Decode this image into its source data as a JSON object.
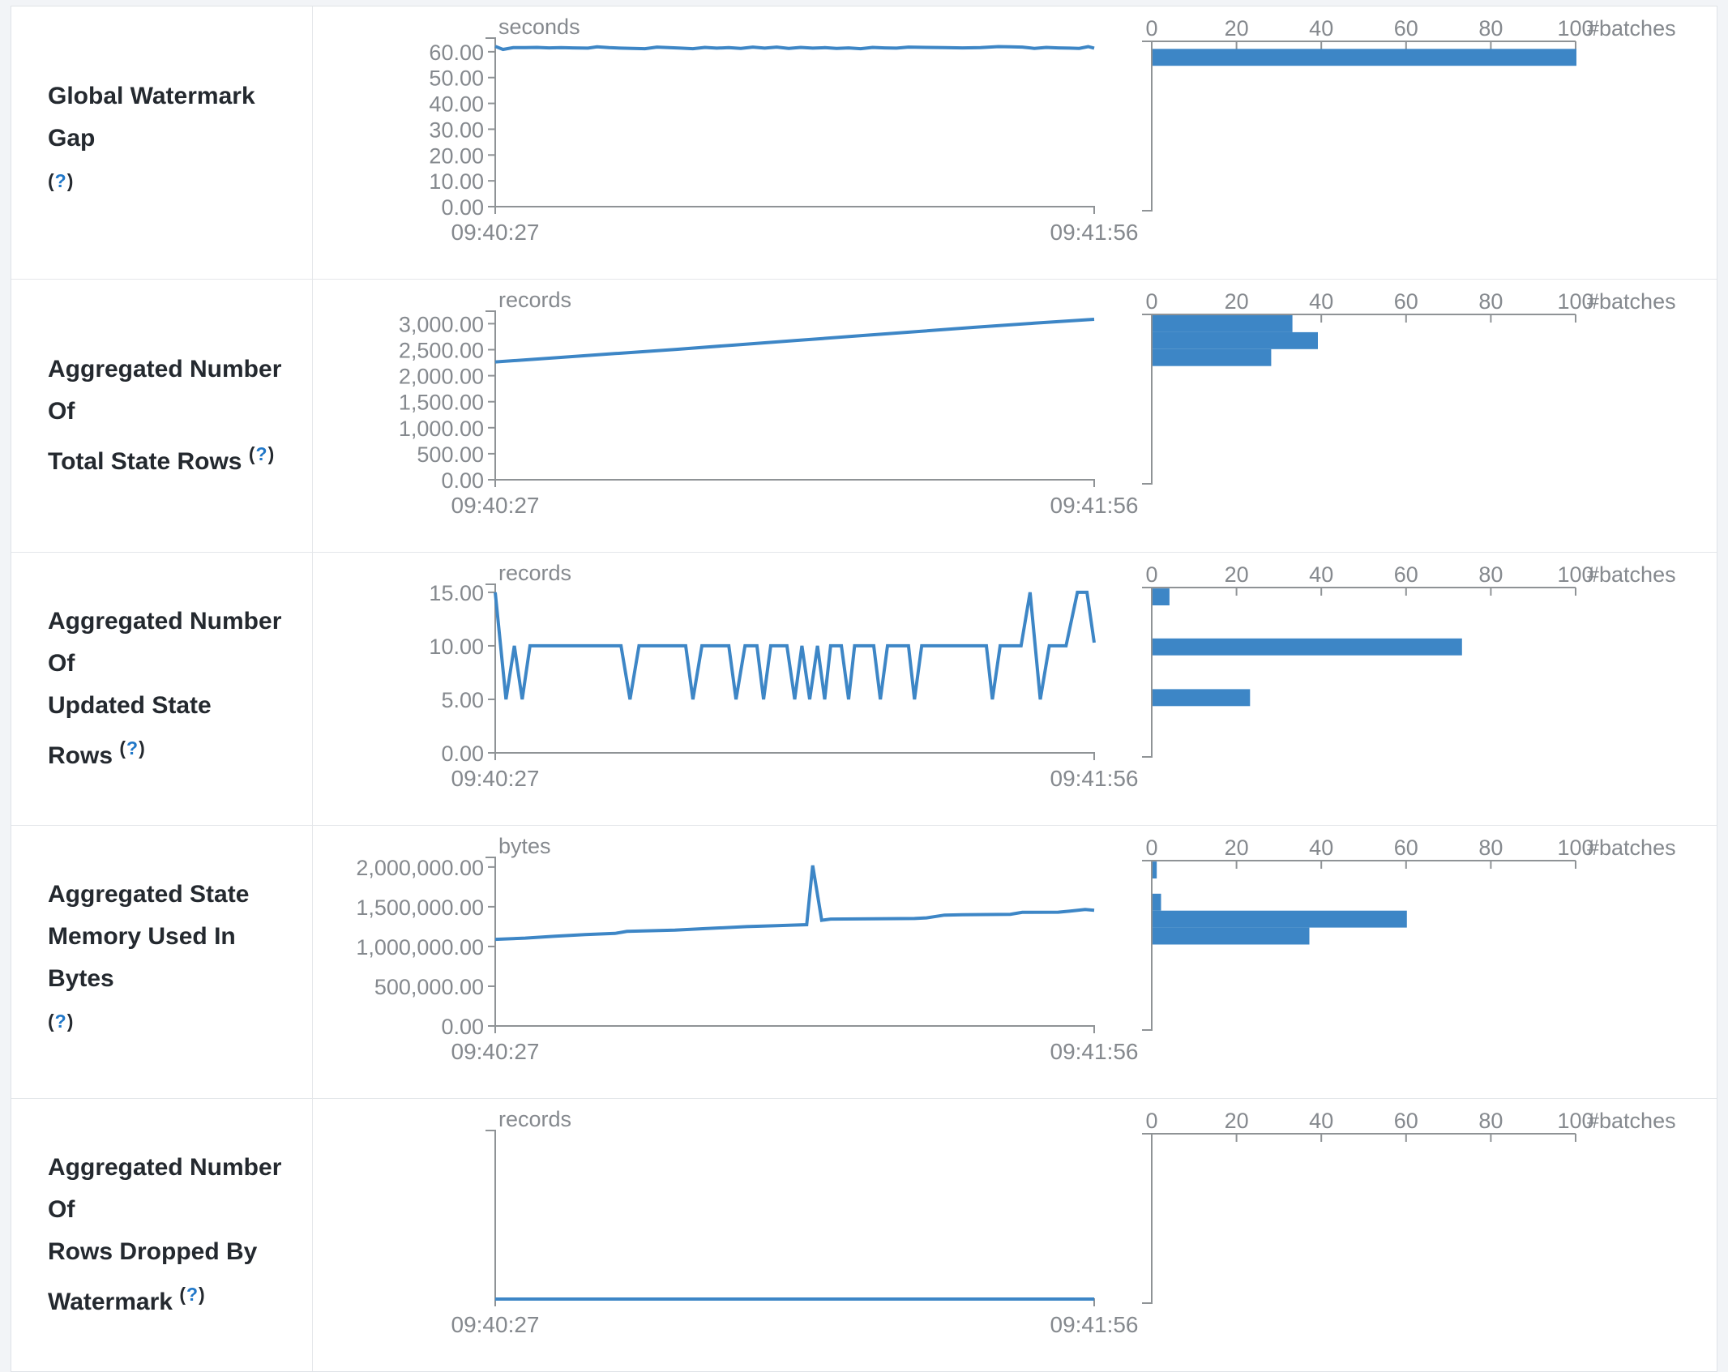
{
  "page": {
    "background_color": "#f2f4f7",
    "panel_color": "#ffffff",
    "accent_blue": "#3d86c6",
    "axis_gray": "#8f9396",
    "text_gray": "#85898e"
  },
  "chart_data": [
    {
      "metric": "Global Watermark Gap",
      "label_lines": [
        "Global Watermark Gap"
      ],
      "help_label": "(?)",
      "help_on_new_line": true,
      "timeline": {
        "type": "line",
        "unit": "seconds",
        "x_start_label": "09:40:27",
        "x_end_label": "09:41:56",
        "y_domain_max": 65.3,
        "y_ticks": [
          {
            "v": 60,
            "label": "60.00"
          },
          {
            "v": 50,
            "label": "50.00"
          },
          {
            "v": 40,
            "label": "40.00"
          },
          {
            "v": 30,
            "label": "30.00"
          },
          {
            "v": 20,
            "label": "20.00"
          },
          {
            "v": 10,
            "label": "10.00"
          },
          {
            "v": 0,
            "label": "0.00"
          }
        ],
        "points": [
          [
            0,
            62.1
          ],
          [
            0.013,
            60.9
          ],
          [
            0.03,
            61.6
          ],
          [
            0.05,
            61.6
          ],
          [
            0.07,
            61.7
          ],
          [
            0.09,
            61.5
          ],
          [
            0.11,
            61.6
          ],
          [
            0.13,
            61.5
          ],
          [
            0.155,
            61.4
          ],
          [
            0.17,
            61.9
          ],
          [
            0.19,
            61.6
          ],
          [
            0.21,
            61.4
          ],
          [
            0.23,
            61.3
          ],
          [
            0.25,
            61.2
          ],
          [
            0.27,
            61.8
          ],
          [
            0.29,
            61.6
          ],
          [
            0.31,
            61.4
          ],
          [
            0.33,
            61.2
          ],
          [
            0.35,
            61.7
          ],
          [
            0.37,
            61.4
          ],
          [
            0.39,
            61.6
          ],
          [
            0.41,
            61.3
          ],
          [
            0.43,
            61.8
          ],
          [
            0.45,
            61.4
          ],
          [
            0.47,
            61.8
          ],
          [
            0.49,
            61.3
          ],
          [
            0.51,
            61.7
          ],
          [
            0.53,
            61.4
          ],
          [
            0.55,
            61.6
          ],
          [
            0.57,
            61.3
          ],
          [
            0.59,
            61.5
          ],
          [
            0.61,
            61.2
          ],
          [
            0.63,
            61.7
          ],
          [
            0.65,
            61.5
          ],
          [
            0.67,
            61.4
          ],
          [
            0.69,
            61.8
          ],
          [
            0.72,
            61.7
          ],
          [
            0.75,
            61.6
          ],
          [
            0.78,
            61.5
          ],
          [
            0.81,
            61.6
          ],
          [
            0.84,
            62.0
          ],
          [
            0.86,
            61.9
          ],
          [
            0.88,
            61.8
          ],
          [
            0.9,
            61.3
          ],
          [
            0.92,
            61.7
          ],
          [
            0.94,
            61.5
          ],
          [
            0.96,
            61.4
          ],
          [
            0.975,
            61.3
          ],
          [
            0.99,
            62.0
          ],
          [
            1,
            61.4
          ]
        ]
      },
      "histogram": {
        "type": "bar",
        "unit": "#batches",
        "x_max": 100,
        "x_ticks": [
          {
            "v": 0,
            "label": "0"
          },
          {
            "v": 20,
            "label": "20"
          },
          {
            "v": 40,
            "label": "40"
          },
          {
            "v": 60,
            "label": "60"
          },
          {
            "v": 80,
            "label": "80"
          },
          {
            "v": 100,
            "label": "100"
          }
        ],
        "bars": [
          {
            "bin_top": 62.4,
            "count": 100
          }
        ]
      }
    },
    {
      "metric": "Aggregated Number Of Total State Rows",
      "label_lines": [
        "Aggregated Number Of",
        "Total State Rows"
      ],
      "help_label": "(?)",
      "help_on_new_line": false,
      "timeline": {
        "type": "line",
        "unit": "records",
        "x_start_label": "09:40:27",
        "x_end_label": "09:41:56",
        "y_domain_max": 3240,
        "y_ticks": [
          {
            "v": 3000,
            "label": "3,000.00"
          },
          {
            "v": 2500,
            "label": "2,500.00"
          },
          {
            "v": 2000,
            "label": "2,000.00"
          },
          {
            "v": 1500,
            "label": "1,500.00"
          },
          {
            "v": 1000,
            "label": "1,000.00"
          },
          {
            "v": 500,
            "label": "500.00"
          },
          {
            "v": 0,
            "label": "0.00"
          }
        ],
        "points": [
          [
            0,
            2265
          ],
          [
            0.1,
            2345
          ],
          [
            0.2,
            2425
          ],
          [
            0.3,
            2505
          ],
          [
            0.4,
            2590
          ],
          [
            0.5,
            2675
          ],
          [
            0.6,
            2760
          ],
          [
            0.7,
            2845
          ],
          [
            0.8,
            2930
          ],
          [
            0.9,
            3010
          ],
          [
            1,
            3085
          ]
        ]
      },
      "histogram": {
        "type": "bar",
        "unit": "#batches",
        "x_max": 100,
        "x_ticks": [
          {
            "v": 0,
            "label": "0"
          },
          {
            "v": 20,
            "label": "20"
          },
          {
            "v": 40,
            "label": "40"
          },
          {
            "v": 60,
            "label": "60"
          },
          {
            "v": 80,
            "label": "80"
          },
          {
            "v": 100,
            "label": "100"
          }
        ],
        "bars": [
          {
            "bin_top": 3224,
            "count": 33
          },
          {
            "bin_top": 2900,
            "count": 39
          },
          {
            "bin_top": 2576,
            "count": 28
          }
        ]
      }
    },
    {
      "metric": "Aggregated Number Of Updated State Rows",
      "label_lines": [
        "Aggregated Number Of",
        "Updated State Rows"
      ],
      "help_label": "(?)",
      "help_on_new_line": false,
      "timeline": {
        "type": "line",
        "unit": "records",
        "x_start_label": "09:40:27",
        "x_end_label": "09:41:56",
        "y_domain_max": 15.75,
        "y_ticks": [
          {
            "v": 15,
            "label": "15.00"
          },
          {
            "v": 10,
            "label": "10.00"
          },
          {
            "v": 5,
            "label": "5.00"
          },
          {
            "v": 0,
            "label": "0.00"
          }
        ],
        "points": [
          [
            0,
            15
          ],
          [
            0.018,
            5
          ],
          [
            0.032,
            10
          ],
          [
            0.045,
            5
          ],
          [
            0.058,
            10
          ],
          [
            0.21,
            10
          ],
          [
            0.225,
            5
          ],
          [
            0.24,
            10
          ],
          [
            0.318,
            10
          ],
          [
            0.33,
            5
          ],
          [
            0.345,
            10
          ],
          [
            0.39,
            10
          ],
          [
            0.402,
            5
          ],
          [
            0.417,
            10
          ],
          [
            0.437,
            10
          ],
          [
            0.448,
            5
          ],
          [
            0.46,
            10
          ],
          [
            0.487,
            10
          ],
          [
            0.5,
            5
          ],
          [
            0.512,
            10
          ],
          [
            0.525,
            5
          ],
          [
            0.538,
            10
          ],
          [
            0.55,
            5
          ],
          [
            0.56,
            10
          ],
          [
            0.578,
            10
          ],
          [
            0.59,
            5
          ],
          [
            0.6,
            10
          ],
          [
            0.632,
            10
          ],
          [
            0.643,
            5
          ],
          [
            0.655,
            10
          ],
          [
            0.69,
            10
          ],
          [
            0.7,
            5
          ],
          [
            0.712,
            10
          ],
          [
            0.82,
            10
          ],
          [
            0.83,
            5
          ],
          [
            0.843,
            10
          ],
          [
            0.878,
            10
          ],
          [
            0.893,
            15
          ],
          [
            0.91,
            5
          ],
          [
            0.925,
            10
          ],
          [
            0.953,
            10
          ],
          [
            0.972,
            15
          ],
          [
            0.988,
            15
          ],
          [
            1,
            10.3
          ]
        ]
      },
      "histogram": {
        "type": "bar",
        "unit": "#batches",
        "x_max": 100,
        "x_ticks": [
          {
            "v": 0,
            "label": "0"
          },
          {
            "v": 20,
            "label": "20"
          },
          {
            "v": 40,
            "label": "40"
          },
          {
            "v": 60,
            "label": "60"
          },
          {
            "v": 80,
            "label": "80"
          },
          {
            "v": 100,
            "label": "100"
          }
        ],
        "bars": [
          {
            "bin_top": 15.67,
            "count": 4
          },
          {
            "bin_top": 11.02,
            "count": 73
          },
          {
            "bin_top": 6.3,
            "count": 23
          }
        ]
      }
    },
    {
      "metric": "Aggregated State Memory Used In Bytes",
      "label_lines": [
        "Aggregated State",
        "Memory Used In Bytes"
      ],
      "help_label": "(?)",
      "help_on_new_line": true,
      "timeline": {
        "type": "line",
        "unit": "bytes",
        "x_start_label": "09:40:27",
        "x_end_label": "09:41:56",
        "y_domain_max": 2121000,
        "y_ticks": [
          {
            "v": 2000000,
            "label": "2,000,000.00"
          },
          {
            "v": 1500000,
            "label": "1,500,000.00"
          },
          {
            "v": 1000000,
            "label": "1,000,000.00"
          },
          {
            "v": 500000,
            "label": "500,000.00"
          },
          {
            "v": 0,
            "label": "0.00"
          }
        ],
        "points": [
          [
            0,
            1090000
          ],
          [
            0.05,
            1105000
          ],
          [
            0.1,
            1130000
          ],
          [
            0.15,
            1150000
          ],
          [
            0.2,
            1165000
          ],
          [
            0.22,
            1190000
          ],
          [
            0.3,
            1205000
          ],
          [
            0.35,
            1225000
          ],
          [
            0.42,
            1250000
          ],
          [
            0.47,
            1262000
          ],
          [
            0.5,
            1270000
          ],
          [
            0.52,
            1275000
          ],
          [
            0.53,
            2020000
          ],
          [
            0.545,
            1330000
          ],
          [
            0.56,
            1345000
          ],
          [
            0.7,
            1352000
          ],
          [
            0.72,
            1360000
          ],
          [
            0.75,
            1395000
          ],
          [
            0.78,
            1400000
          ],
          [
            0.86,
            1405000
          ],
          [
            0.88,
            1430000
          ],
          [
            0.94,
            1432000
          ],
          [
            0.96,
            1445000
          ],
          [
            0.985,
            1465000
          ],
          [
            1,
            1455000
          ]
        ]
      },
      "histogram": {
        "type": "bar",
        "unit": "#batches",
        "x_max": 100,
        "x_ticks": [
          {
            "v": 0,
            "label": "0"
          },
          {
            "v": 20,
            "label": "20"
          },
          {
            "v": 40,
            "label": "40"
          },
          {
            "v": 60,
            "label": "60"
          },
          {
            "v": 80,
            "label": "80"
          },
          {
            "v": 100,
            "label": "100"
          }
        ],
        "bars": [
          {
            "bin_top": 2110000,
            "count": 1
          },
          {
            "bin_top": 1707000,
            "count": 2
          },
          {
            "bin_top": 1495000,
            "count": 60
          },
          {
            "bin_top": 1283000,
            "count": 37
          }
        ]
      }
    },
    {
      "metric": "Aggregated Number Of Rows Dropped By Watermark",
      "label_lines": [
        "Aggregated Number Of",
        "Rows Dropped By",
        "Watermark"
      ],
      "help_label": "(?)",
      "help_on_new_line": false,
      "timeline": {
        "type": "line",
        "unit": "records",
        "x_start_label": "09:40:27",
        "x_end_label": "09:41:56",
        "y_domain_max": 1,
        "y_ticks": [],
        "points": [
          [
            0,
            0
          ],
          [
            1,
            0
          ]
        ]
      },
      "histogram": {
        "type": "bar",
        "unit": "#batches",
        "x_max": 100,
        "x_ticks": [
          {
            "v": 0,
            "label": "0"
          },
          {
            "v": 20,
            "label": "20"
          },
          {
            "v": 40,
            "label": "40"
          },
          {
            "v": 60,
            "label": "60"
          },
          {
            "v": 80,
            "label": "80"
          },
          {
            "v": 100,
            "label": "100"
          }
        ],
        "bars": []
      }
    }
  ]
}
